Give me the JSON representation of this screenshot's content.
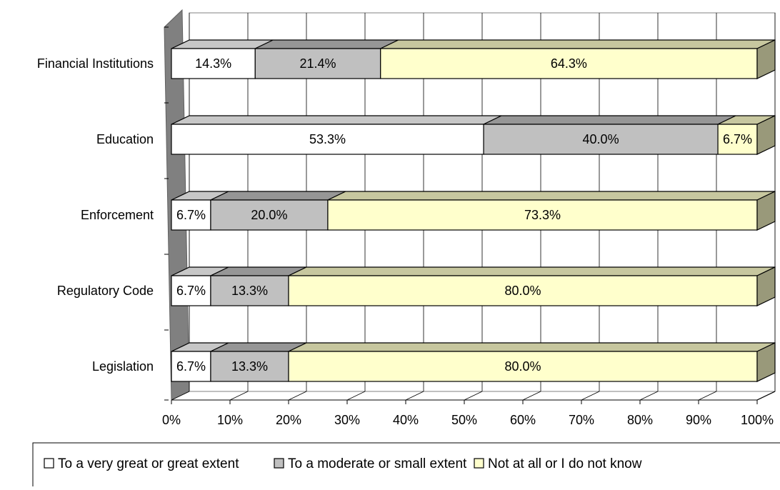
{
  "chart_data": {
    "type": "bar",
    "orientation": "horizontal",
    "stacked": "percent",
    "categories": [
      "Financial Institutions",
      "Education",
      "Enforcement",
      "Regulatory Code",
      "Legislation"
    ],
    "series": [
      {
        "name": "To a very great or great extent",
        "color": "#ffffff",
        "values": [
          14.3,
          53.3,
          6.7,
          6.7,
          6.7
        ],
        "labels": [
          "14.3%",
          "53.3%",
          "6.7%",
          "6.7%",
          "6.7%"
        ]
      },
      {
        "name": "To a moderate or small extent",
        "color": "#c0c0c0",
        "values": [
          21.4,
          40.0,
          20.0,
          13.3,
          13.3
        ],
        "labels": [
          "21.4%",
          "40.0%",
          "20.0%",
          "13.3%",
          "13.3%"
        ]
      },
      {
        "name": "Not at all or I do not know",
        "color": "#ffffcc",
        "values": [
          64.3,
          6.7,
          73.3,
          80.0,
          80.0
        ],
        "labels": [
          "64.3%",
          "6.7%",
          "73.3%",
          "80.0%",
          "80.0%"
        ]
      }
    ],
    "xlim": [
      0,
      100
    ],
    "x_ticks": [
      "0%",
      "10%",
      "20%",
      "30%",
      "40%",
      "50%",
      "60%",
      "70%",
      "80%",
      "90%",
      "100%"
    ],
    "grid": true,
    "three_d": true,
    "legend_position": "bottom"
  }
}
